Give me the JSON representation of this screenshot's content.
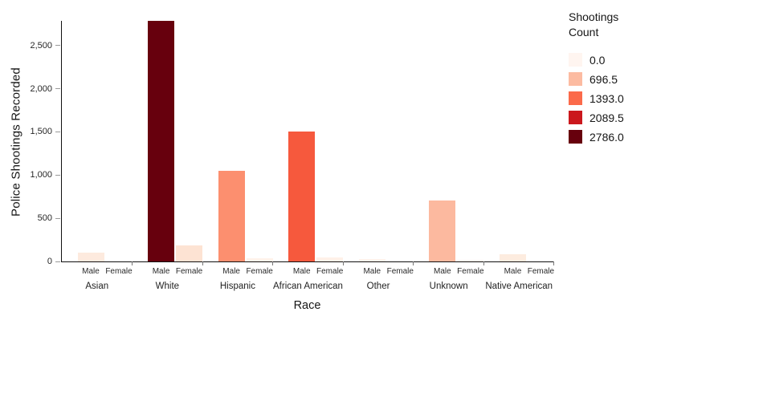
{
  "chart_data": {
    "type": "bar",
    "title": "",
    "xlabel": "Race",
    "ylabel": "Police Shootings Recorded",
    "ylim": [
      0,
      2786
    ],
    "grid": false,
    "legend_position": "right",
    "y_ticks": [
      {
        "value": 0,
        "label": "0"
      },
      {
        "value": 500,
        "label": "500"
      },
      {
        "value": 1000,
        "label": "1,000"
      },
      {
        "value": 1500,
        "label": "1,500"
      },
      {
        "value": 2000,
        "label": "2,000"
      },
      {
        "value": 2500,
        "label": "2,500"
      }
    ],
    "categories": [
      "Asian",
      "White",
      "Hispanic",
      "African American",
      "Other",
      "Unknown",
      "Native American"
    ],
    "subcategories": [
      "Male",
      "Female"
    ],
    "series": [
      {
        "name": "Male",
        "values": [
          100,
          2786,
          1045,
          1500,
          30,
          710,
          85
        ],
        "colors": [
          "#fdeade",
          "#67000d",
          "#fc8f6f",
          "#f6593d",
          "#fff2eb",
          "#fcb99f",
          "#fdecdf"
        ]
      },
      {
        "name": "Female",
        "values": [
          0,
          190,
          35,
          45,
          0,
          15,
          0
        ],
        "colors": [
          "#fff5f0",
          "#fde3d3",
          "#fff2ea",
          "#fff1e8",
          "#fff5f0",
          "#fff4ee",
          "#fff5f0"
        ]
      }
    ],
    "color_scale": {
      "name": "Reds",
      "domain": [
        0,
        2786
      ]
    }
  },
  "legend": {
    "title_lines": [
      "Shootings",
      "Count"
    ],
    "items": [
      {
        "label": "0.0",
        "color": "#fff5f0"
      },
      {
        "label": "696.5",
        "color": "#fcbba1"
      },
      {
        "label": "1393.0",
        "color": "#fb6a4a"
      },
      {
        "label": "2089.5",
        "color": "#cb181d"
      },
      {
        "label": "2786.0",
        "color": "#67000d"
      }
    ]
  }
}
